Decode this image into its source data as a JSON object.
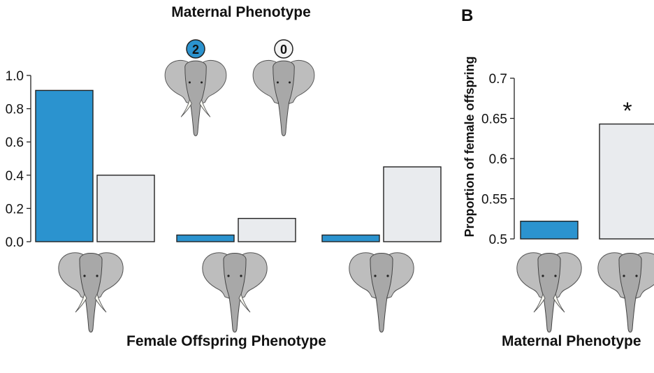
{
  "colors": {
    "blue": "#2b93cf",
    "light": "#e9ebee",
    "stroke": "#222222",
    "elephant": "#9a9a9a"
  },
  "chart_data": [
    {
      "type": "bar",
      "title": "Maternal Phenotype",
      "xlabel": "Female Offspring Phenotype",
      "ylabel": "",
      "ylim": [
        0,
        1.0
      ],
      "yticks": [
        "0.0",
        "0.2",
        "0.4",
        "0.6",
        "0.8",
        "1.0"
      ],
      "categories": [
        "2 tusks",
        "1 tusk",
        "0 tusks"
      ],
      "legend_badges": [
        "2",
        "0"
      ],
      "legend_icons": [
        "elephant-two-tusks-icon",
        "elephant-tuskless-icon"
      ],
      "category_icons": [
        "elephant-two-tusks-icon",
        "elephant-one-tusk-icon",
        "elephant-tuskless-icon"
      ],
      "series": [
        {
          "name": "2",
          "color": "#2b93cf",
          "values": [
            0.91,
            0.04,
            0.04
          ]
        },
        {
          "name": "0",
          "color": "#e9ebee",
          "values": [
            0.4,
            0.14,
            0.45
          ]
        }
      ]
    },
    {
      "type": "bar",
      "panel_label": "B",
      "xlabel": "Maternal Phenotype",
      "ylabel": "Proportion of female offspring",
      "ylim": [
        0.5,
        0.7
      ],
      "yticks": [
        "0.5",
        "0.55",
        "0.6",
        "0.65",
        "0.7"
      ],
      "categories": [
        "2 tusks",
        "0 tusks"
      ],
      "category_icons": [
        "elephant-two-tusks-icon",
        "elephant-tuskless-icon"
      ],
      "values": [
        0.522,
        0.643
      ],
      "colors": [
        "#2b93cf",
        "#e9ebee"
      ],
      "annotation": "*"
    }
  ]
}
